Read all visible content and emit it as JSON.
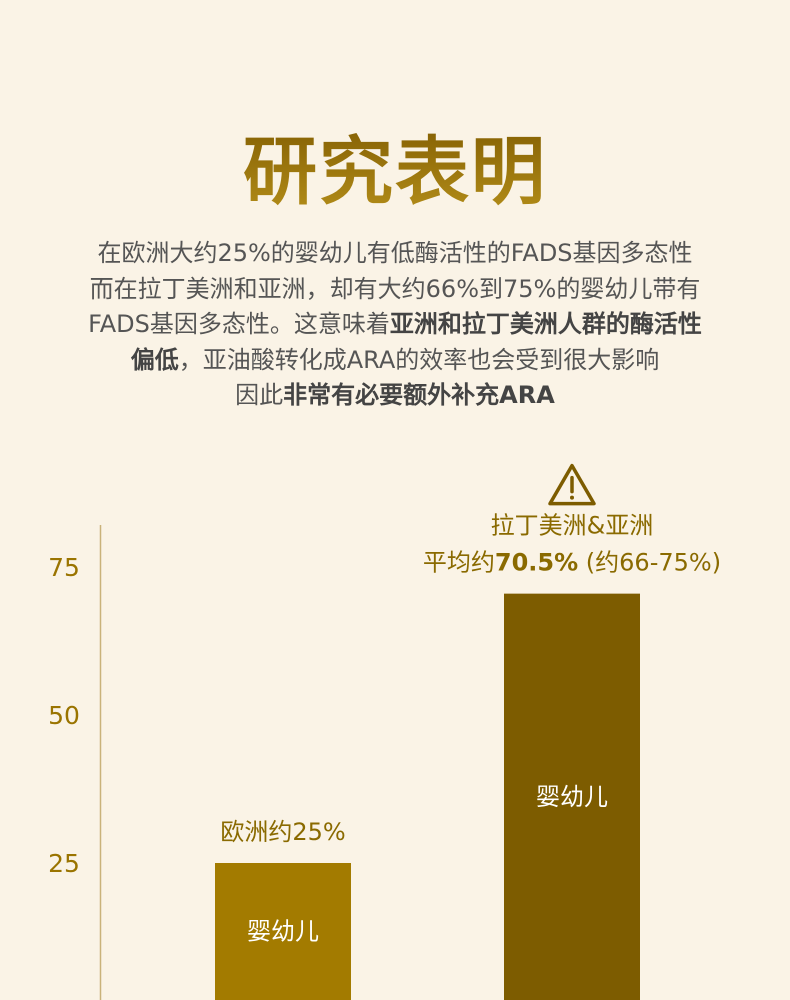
{
  "title": "研究表明",
  "paragraph": [
    [
      {
        "t": "在欧洲大约25%的婴幼儿有低酶活性的FADS基因多态性",
        "b": false
      }
    ],
    [
      {
        "t": "而在拉丁美洲和亚洲，却有大约66%到75%的婴幼儿带有",
        "b": false
      }
    ],
    [
      {
        "t": "FADS基因多态性。这意味着",
        "b": false
      },
      {
        "t": "亚洲和拉丁美洲人群的酶活性",
        "b": true
      }
    ],
    [
      {
        "t": "偏低",
        "b": true
      },
      {
        "t": "，亚油酸转化成ARA的效率也会受到很大影响",
        "b": false
      }
    ],
    [
      {
        "t": "因此",
        "b": false
      },
      {
        "t": "非常有必要额外补充ARA",
        "b": true
      }
    ]
  ],
  "chart_data": {
    "type": "bar",
    "categories": [
      "婴幼儿",
      "婴幼儿"
    ],
    "values": [
      25,
      70.5
    ],
    "bar_colors": [
      "#A37B00",
      "#7D5C00"
    ],
    "annotations": [
      {
        "lines": [
          "欧洲约25%"
        ]
      },
      {
        "icon": "warning-triangle-icon",
        "lines": [
          "拉丁美洲&亚洲"
        ],
        "line2": {
          "prefix": "平均约",
          "bold": "70.5%",
          "suffix": " (约66-75%)"
        }
      }
    ],
    "yticks": [
      25,
      50,
      75
    ],
    "ylim": [
      0,
      77
    ],
    "grid": false,
    "accent": "#9A7400"
  }
}
